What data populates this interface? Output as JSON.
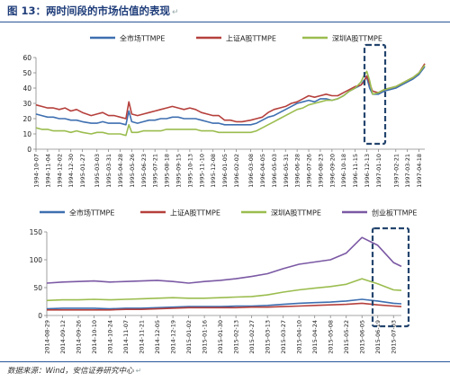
{
  "caption": {
    "title": "图 13：两时间段的市场估值的表现"
  },
  "source": "数据来源：Wind，安信证券研究中心",
  "chart_data": [
    {
      "type": "line",
      "ylim": [
        0,
        60
      ],
      "yticks": [
        0,
        10,
        20,
        30,
        40,
        50,
        60
      ],
      "grid": false,
      "legend_position": "top",
      "tick_labels": [
        "1994-10-07",
        "1994-11-04",
        "1994-12-02",
        "1994-12-30",
        "1995-01-27",
        "1995-03-03",
        "1995-03-31",
        "1995-04-28",
        "1995-05-26",
        "1995-06-23",
        "1995-07-21",
        "1995-08-18",
        "1995-09-15",
        "1995-10-13",
        "1995-11-10",
        "1995-12-08",
        "1996-01-05",
        "1996-02-02",
        "1996-03-08",
        "1996-04-05",
        "1996-05-03",
        "1996-05-31",
        "1996-06-28",
        "1996-07-26",
        "1996-08-23",
        "1996-09-20",
        "1996-10-18",
        "1996-11-15",
        "1996-12-13",
        "1997-01-10",
        "1997-02-21",
        "1997-03-21",
        "1997-04-18"
      ],
      "x": [
        "1994-10-07",
        "1994-10-21",
        "1994-11-04",
        "1994-11-18",
        "1994-12-02",
        "1994-12-16",
        "1994-12-30",
        "1995-01-13",
        "1995-01-27",
        "1995-02-17",
        "1995-03-03",
        "1995-03-17",
        "1995-03-31",
        "1995-04-14",
        "1995-04-28",
        "1995-05-12",
        "1995-05-19",
        "1995-05-26",
        "1995-06-09",
        "1995-06-23",
        "1995-07-07",
        "1995-07-21",
        "1995-08-04",
        "1995-08-18",
        "1995-09-01",
        "1995-09-15",
        "1995-09-29",
        "1995-10-13",
        "1995-10-27",
        "1995-11-10",
        "1995-11-24",
        "1995-12-08",
        "1995-12-22",
        "1996-01-05",
        "1996-01-19",
        "1996-02-02",
        "1996-02-16",
        "1996-03-08",
        "1996-03-22",
        "1996-04-05",
        "1996-04-19",
        "1996-05-03",
        "1996-05-17",
        "1996-05-31",
        "1996-06-14",
        "1996-06-28",
        "1996-07-12",
        "1996-07-26",
        "1996-08-09",
        "1996-08-23",
        "1996-09-06",
        "1996-09-20",
        "1996-10-04",
        "1996-10-18",
        "1996-11-01",
        "1996-11-15",
        "1996-11-29",
        "1996-12-06",
        "1996-12-13",
        "1996-12-20",
        "1996-12-27",
        "1997-01-10",
        "1997-01-24",
        "1997-02-21",
        "1997-03-07",
        "1997-03-21",
        "1997-04-04",
        "1997-04-18",
        "1997-05-02"
      ],
      "series": [
        {
          "name": "全市场TTMPE",
          "color": "#3e6fb0",
          "values": [
            23,
            22,
            21,
            21,
            20,
            20,
            19,
            19,
            18,
            17,
            17,
            18,
            17,
            17,
            17,
            16,
            25,
            18,
            17,
            18,
            19,
            19,
            20,
            20,
            21,
            21,
            20,
            20,
            20,
            19,
            18,
            17,
            17,
            16,
            16,
            16,
            16,
            16,
            17,
            19,
            21,
            22,
            24,
            26,
            28,
            30,
            31,
            32,
            31,
            33,
            33,
            32,
            33,
            35,
            38,
            40,
            42,
            45,
            47,
            40,
            36,
            36,
            38,
            40,
            42,
            44,
            46,
            49,
            54
          ]
        },
        {
          "name": "上证A股TTMPE",
          "color": "#b5403c",
          "values": [
            29,
            28,
            27,
            27,
            26,
            27,
            25,
            26,
            24,
            22,
            23,
            24,
            22,
            22,
            21,
            20,
            31,
            23,
            22,
            23,
            24,
            25,
            26,
            27,
            28,
            27,
            26,
            27,
            26,
            24,
            23,
            22,
            22,
            19,
            19,
            18,
            18,
            19,
            20,
            21,
            24,
            26,
            27,
            28,
            30,
            31,
            33,
            35,
            34,
            35,
            36,
            35,
            35,
            37,
            39,
            41,
            42,
            44,
            48,
            43,
            38,
            37,
            39,
            41,
            43,
            45,
            47,
            50,
            56
          ]
        },
        {
          "name": "深圳A股TTMPE",
          "color": "#9bbd4f",
          "values": [
            14,
            13,
            13,
            12,
            12,
            12,
            11,
            12,
            11,
            10,
            11,
            11,
            10,
            10,
            10,
            9,
            16,
            11,
            11,
            12,
            12,
            12,
            12,
            13,
            13,
            13,
            13,
            13,
            13,
            12,
            12,
            12,
            11,
            11,
            11,
            11,
            11,
            11,
            12,
            14,
            16,
            18,
            20,
            22,
            24,
            26,
            27,
            29,
            30,
            31,
            32,
            32,
            33,
            35,
            38,
            40,
            44,
            48,
            51,
            45,
            36,
            37,
            39,
            41,
            43,
            45,
            47,
            50,
            55
          ]
        }
      ]
    },
    {
      "type": "line",
      "ylim": [
        0,
        150
      ],
      "yticks": [
        0,
        50,
        100,
        150
      ],
      "grid": false,
      "legend_position": "top",
      "tick_labels": [
        "2014-08-29",
        "2014-09-12",
        "2014-09-26",
        "2014-10-10",
        "2014-10-24",
        "2014-11-07",
        "2014-11-21",
        "2014-12-05",
        "2014-12-19",
        "2015-01-02",
        "2015-01-16",
        "2015-01-30",
        "2015-02-13",
        "2015-02-27",
        "2015-03-13",
        "2015-03-27",
        "2015-04-10",
        "2015-04-24",
        "2015-05-08",
        "2015-05-22",
        "2015-06-05",
        "2015-06-19",
        "2015-07-03"
      ],
      "x": [
        "2014-08-29",
        "2014-09-12",
        "2014-09-26",
        "2014-10-10",
        "2014-10-24",
        "2014-11-07",
        "2014-11-21",
        "2014-12-05",
        "2014-12-19",
        "2015-01-02",
        "2015-01-16",
        "2015-01-30",
        "2015-02-13",
        "2015-02-27",
        "2015-03-13",
        "2015-03-27",
        "2015-04-10",
        "2015-04-24",
        "2015-05-08",
        "2015-05-22",
        "2015-06-05",
        "2015-06-19",
        "2015-07-03",
        "2015-07-10"
      ],
      "series": [
        {
          "name": "全市场TTMPE",
          "color": "#3e6fb0",
          "values": [
            12,
            13,
            13,
            13,
            12,
            13,
            13,
            14,
            15,
            16,
            16,
            16,
            17,
            17,
            18,
            20,
            22,
            23,
            24,
            26,
            29,
            26,
            22,
            21
          ]
        },
        {
          "name": "上证A股TTMPE",
          "color": "#b5403c",
          "values": [
            10,
            10,
            10,
            10,
            10,
            11,
            11,
            12,
            13,
            14,
            14,
            14,
            14,
            15,
            15,
            16,
            17,
            18,
            19,
            20,
            22,
            19,
            17,
            16
          ]
        },
        {
          "name": "深圳A股TTMPE",
          "color": "#9bbd4f",
          "values": [
            27,
            28,
            28,
            29,
            28,
            29,
            30,
            31,
            32,
            31,
            31,
            32,
            33,
            34,
            37,
            42,
            46,
            49,
            52,
            56,
            66,
            57,
            46,
            45
          ]
        },
        {
          "name": "创业板TTMPE",
          "color": "#7b59a4",
          "values": [
            58,
            60,
            61,
            62,
            60,
            61,
            62,
            63,
            61,
            58,
            61,
            63,
            66,
            70,
            75,
            84,
            92,
            96,
            100,
            112,
            140,
            126,
            95,
            88
          ]
        }
      ]
    }
  ]
}
